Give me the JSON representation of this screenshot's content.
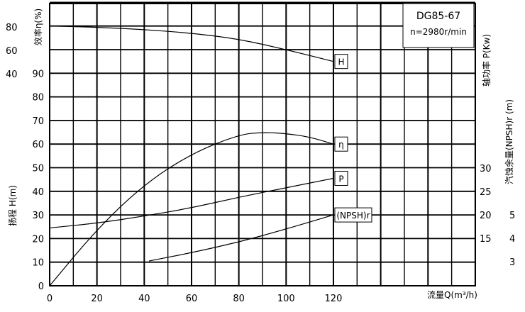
{
  "chart_data": {
    "type": "line",
    "title": "DG85-67",
    "subtitle": "n=2980r/min",
    "xlabel": "流量Q(m³/h)",
    "xlim": [
      0,
      180
    ],
    "x_ticks": [
      "0",
      "20",
      "40",
      "60",
      "80",
      "100",
      "120"
    ],
    "axes": {
      "efficiency": {
        "label": "效率η(%)",
        "ticks": [
          "80",
          "60",
          "40"
        ]
      },
      "head": {
        "label": "扬程 H(m)",
        "range": [
          0,
          100
        ],
        "ticks": [
          "0",
          "10",
          "20",
          "30",
          "40",
          "50",
          "60",
          "70",
          "80",
          "90"
        ]
      },
      "power": {
        "label": "轴功率 P(Kw)"
      },
      "npsh": {
        "label": "汽蚀余量(NPSH)r (m)",
        "ticks": [
          "30",
          "25",
          "20",
          "15"
        ]
      },
      "npsh_outer": {
        "ticks": [
          "5",
          "4",
          "3"
        ]
      }
    },
    "series": [
      {
        "name": "H",
        "x": [
          0,
          20,
          40,
          60,
          80,
          100,
          120
        ],
        "y": [
          110,
          109.5,
          108.5,
          107,
          104.5,
          100,
          95
        ]
      },
      {
        "name": "η",
        "x": [
          0,
          20,
          40,
          60,
          80,
          90,
          100,
          110,
          120
        ],
        "y": [
          0,
          24,
          43,
          56,
          64,
          65,
          64.5,
          63,
          60
        ]
      },
      {
        "name": "P",
        "x": [
          0,
          20,
          40,
          60,
          80,
          100,
          120
        ],
        "y": [
          24.5,
          26.5,
          29.5,
          33,
          37.5,
          41.5,
          45.5
        ]
      },
      {
        "name": "(NPSH)r",
        "x": [
          42,
          60,
          80,
          100,
          120
        ],
        "y": [
          10.5,
          14,
          18.5,
          24,
          30
        ]
      }
    ],
    "grid": true
  }
}
